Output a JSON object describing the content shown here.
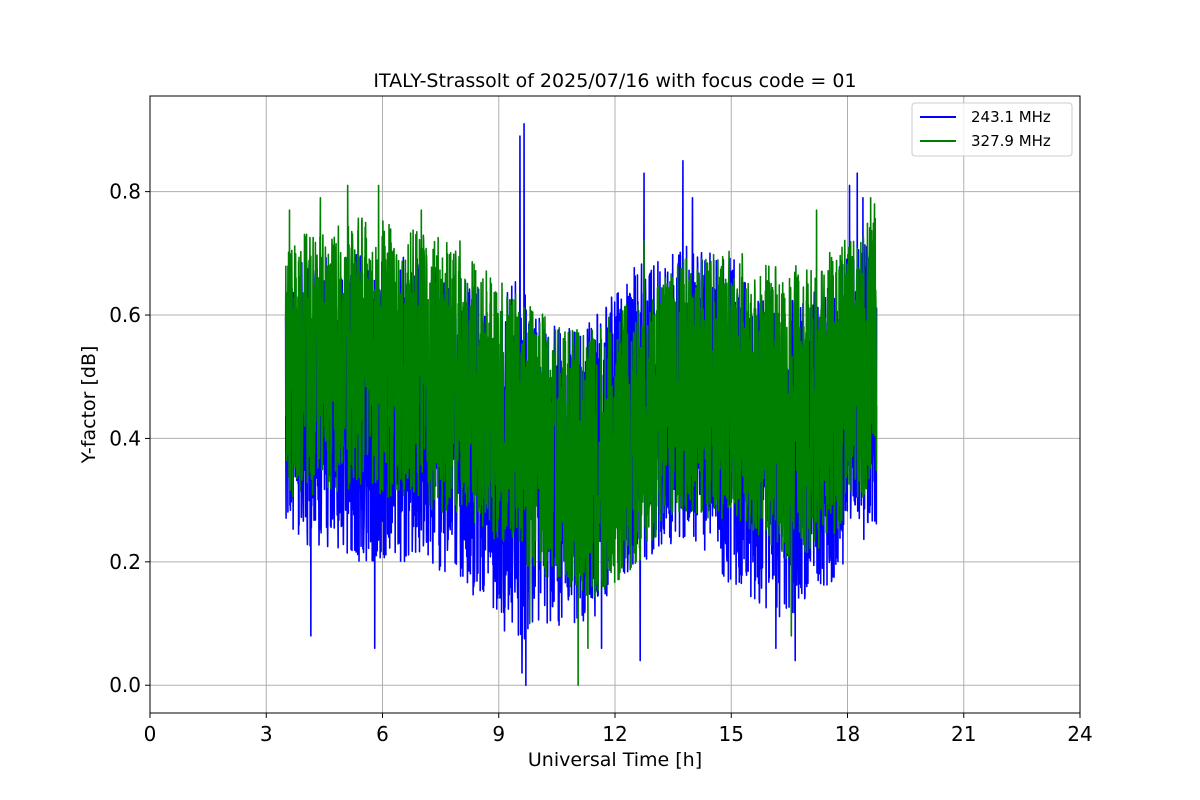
{
  "chart_data": {
    "type": "line",
    "title": "ITALY-Strassolt of 2025/07/16 with focus code = 01",
    "xlabel": "Universal Time [h]",
    "ylabel": "Y-factor [dB]",
    "xlim": [
      0,
      24
    ],
    "ylim": [
      -0.045,
      0.955
    ],
    "xticks": [
      0,
      3,
      6,
      9,
      12,
      15,
      18,
      21,
      24
    ],
    "xtick_labels": [
      "0",
      "3",
      "6",
      "9",
      "12",
      "15",
      "18",
      "21",
      "24"
    ],
    "yticks": [
      0.0,
      0.2,
      0.4,
      0.6,
      0.8
    ],
    "ytick_labels": [
      "0.0",
      "0.2",
      "0.4",
      "0.6",
      "0.8"
    ],
    "grid": true,
    "legend_position": "top-right",
    "series": [
      {
        "name": "243.1 MHz",
        "color": "#0000ff",
        "x_range": [
          3.5,
          18.75
        ],
        "envelope": {
          "x": [
            3.5,
            4.5,
            5.5,
            6.5,
            7.5,
            8.5,
            9.0,
            9.5,
            10.0,
            10.5,
            11.0,
            11.5,
            12.0,
            12.5,
            13.0,
            13.5,
            14.0,
            14.5,
            15.0,
            15.5,
            16.0,
            16.5,
            17.0,
            17.5,
            18.0,
            18.5,
            18.75
          ],
          "low": [
            0.25,
            0.21,
            0.2,
            0.2,
            0.18,
            0.14,
            0.1,
            0.06,
            0.08,
            0.08,
            0.1,
            0.11,
            0.16,
            0.18,
            0.21,
            0.23,
            0.24,
            0.2,
            0.16,
            0.14,
            0.12,
            0.1,
            0.14,
            0.16,
            0.2,
            0.24,
            0.26
          ],
          "high": [
            0.7,
            0.7,
            0.7,
            0.7,
            0.68,
            0.65,
            0.62,
            0.68,
            0.6,
            0.58,
            0.58,
            0.6,
            0.64,
            0.68,
            0.7,
            0.7,
            0.72,
            0.72,
            0.7,
            0.66,
            0.64,
            0.63,
            0.64,
            0.66,
            0.7,
            0.72,
            0.72
          ]
        },
        "peaks": [
          [
            9.55,
            0.89
          ],
          [
            9.65,
            0.91
          ],
          [
            12.75,
            0.83
          ],
          [
            13.75,
            0.85
          ],
          [
            14.0,
            0.79
          ],
          [
            18.05,
            0.81
          ],
          [
            18.25,
            0.83
          ],
          [
            18.4,
            0.79
          ]
        ],
        "dips": [
          [
            4.15,
            0.08
          ],
          [
            5.8,
            0.06
          ],
          [
            9.6,
            0.02
          ],
          [
            9.7,
            0.0
          ],
          [
            11.65,
            0.06
          ],
          [
            12.65,
            0.04
          ],
          [
            16.15,
            0.06
          ],
          [
            16.65,
            0.04
          ]
        ]
      },
      {
        "name": "327.9 MHz",
        "color": "#008000",
        "x_range": [
          3.5,
          18.75
        ],
        "envelope": {
          "x": [
            3.5,
            4.5,
            5.5,
            6.5,
            7.5,
            8.5,
            9.0,
            9.5,
            10.0,
            10.5,
            11.0,
            11.5,
            12.0,
            12.5,
            13.0,
            13.5,
            14.0,
            14.5,
            15.0,
            15.5,
            16.0,
            16.5,
            17.0,
            17.5,
            18.0,
            18.5,
            18.75
          ],
          "low": [
            0.3,
            0.31,
            0.31,
            0.3,
            0.28,
            0.26,
            0.22,
            0.2,
            0.18,
            0.17,
            0.15,
            0.14,
            0.16,
            0.19,
            0.23,
            0.26,
            0.27,
            0.27,
            0.26,
            0.25,
            0.23,
            0.2,
            0.21,
            0.23,
            0.27,
            0.31,
            0.33
          ],
          "high": [
            0.73,
            0.74,
            0.76,
            0.75,
            0.73,
            0.69,
            0.66,
            0.63,
            0.61,
            0.59,
            0.58,
            0.59,
            0.6,
            0.63,
            0.66,
            0.68,
            0.7,
            0.71,
            0.71,
            0.7,
            0.69,
            0.68,
            0.69,
            0.71,
            0.73,
            0.75,
            0.76
          ]
        },
        "peaks": [
          [
            3.6,
            0.77
          ],
          [
            4.4,
            0.79
          ],
          [
            5.1,
            0.81
          ],
          [
            5.9,
            0.81
          ],
          [
            7.0,
            0.77
          ],
          [
            8.0,
            0.72
          ],
          [
            12.75,
            0.72
          ],
          [
            17.2,
            0.77
          ],
          [
            18.6,
            0.79
          ],
          [
            18.7,
            0.78
          ]
        ],
        "dips": [
          [
            11.05,
            0.0
          ],
          [
            11.3,
            0.06
          ],
          [
            9.8,
            0.1
          ],
          [
            16.55,
            0.08
          ]
        ]
      }
    ]
  }
}
